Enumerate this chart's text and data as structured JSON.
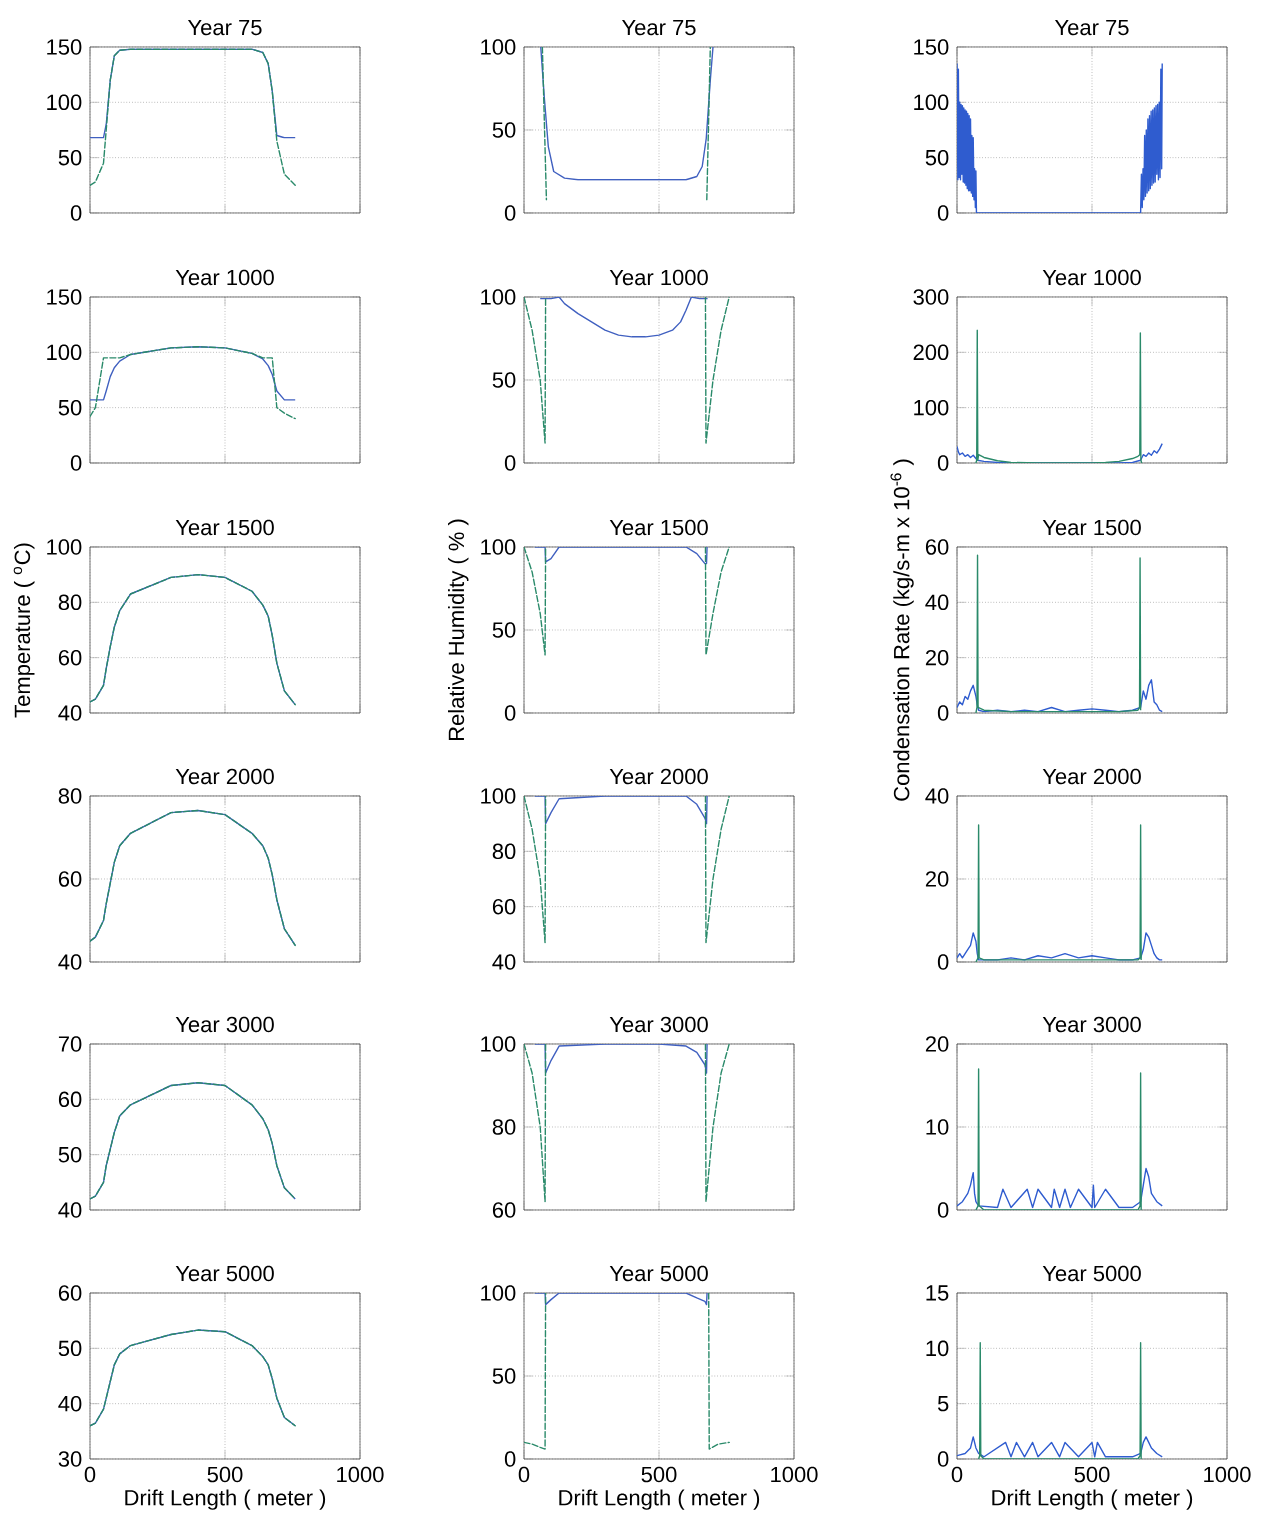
{
  "chart_data": [
    {
      "type": "line",
      "title": "Year 75",
      "xlim": [
        0,
        1000
      ],
      "xticks": [
        0,
        500,
        1000
      ],
      "ylim": [
        0,
        150
      ],
      "yticks": [
        0,
        50,
        100,
        150
      ],
      "grid": true,
      "tick_labels": "y",
      "series": [
        {
          "color": "#4060c0",
          "line_style": "solid",
          "x": [
            0,
            20,
            50,
            60,
            75,
            90,
            110,
            150,
            300,
            400,
            500,
            600,
            640,
            660,
            675,
            692,
            720,
            760
          ],
          "values": [
            68,
            68,
            68,
            80,
            120,
            142,
            147,
            148,
            148,
            148,
            148,
            148,
            145,
            135,
            110,
            70,
            68,
            68
          ]
        },
        {
          "color": "#2a8a6a",
          "line_style": "dashed",
          "x": [
            0,
            20,
            50,
            60,
            75,
            90,
            110,
            150,
            300,
            400,
            500,
            600,
            640,
            660,
            675,
            692,
            720,
            760
          ],
          "values": [
            25,
            28,
            45,
            75,
            120,
            142,
            147,
            148,
            148,
            148,
            148,
            148,
            145,
            135,
            110,
            65,
            35,
            25
          ]
        }
      ]
    },
    {
      "type": "line",
      "title": "Year 75",
      "xlim": [
        0,
        1000
      ],
      "xticks": [
        0,
        500,
        1000
      ],
      "ylim": [
        0,
        100
      ],
      "yticks": [
        0,
        50,
        100
      ],
      "grid": true,
      "tick_labels": "y",
      "series": [
        {
          "color": "#4060c0",
          "line_style": "solid",
          "x": [
            62,
            75,
            90,
            110,
            150,
            200,
            300,
            400,
            500,
            600,
            640,
            660,
            675,
            690,
            700
          ],
          "values": [
            100,
            70,
            40,
            25,
            21,
            20,
            20,
            20,
            20,
            20,
            22,
            28,
            45,
            80,
            100
          ]
        },
        {
          "color": "#2a8a6a",
          "line_style": "dashed",
          "x": [
            68,
            83,
            500,
            677,
            690
          ],
          "values": [
            100,
            8,
            null,
            8,
            100
          ]
        }
      ]
    },
    {
      "type": "line",
      "title": "Year 75",
      "xlim": [
        0,
        1000
      ],
      "xticks": [
        0,
        500,
        1000
      ],
      "ylim": [
        0,
        150
      ],
      "yticks": [
        0,
        50,
        100,
        150
      ],
      "grid": true,
      "tick_labels": "y",
      "series": [
        {
          "color": "#2f5ccf",
          "line_style": "solid",
          "x": [
            0,
            3,
            5,
            8,
            10,
            13,
            15,
            18,
            20,
            23,
            25,
            28,
            30,
            33,
            35,
            38,
            40,
            43,
            45,
            48,
            50,
            53,
            55,
            58,
            60,
            63,
            65,
            68,
            70,
            72,
            75,
            680,
            683,
            686,
            689,
            692,
            695,
            698,
            701,
            704,
            707,
            710,
            713,
            716,
            719,
            722,
            725,
            728,
            731,
            734,
            737,
            740,
            743,
            746,
            749,
            752,
            755,
            758,
            760
          ],
          "values": [
            135,
            30,
            130,
            32,
            100,
            30,
            98,
            35,
            97,
            28,
            95,
            27,
            93,
            25,
            92,
            22,
            90,
            20,
            88,
            20,
            85,
            18,
            70,
            15,
            68,
            12,
            40,
            5,
            38,
            0,
            0,
            0,
            35,
            5,
            40,
            12,
            70,
            15,
            75,
            18,
            85,
            20,
            88,
            22,
            92,
            25,
            93,
            27,
            95,
            28,
            97,
            35,
            98,
            30,
            100,
            32,
            130,
            40,
            135
          ]
        }
      ]
    },
    {
      "type": "line",
      "title": "Year 1000",
      "xlim": [
        0,
        1000
      ],
      "xticks": [
        0,
        500,
        1000
      ],
      "ylim": [
        0,
        150
      ],
      "yticks": [
        0,
        50,
        100,
        150
      ],
      "grid": true,
      "tick_labels": "y",
      "series": [
        {
          "color": "#4060c0",
          "line_style": "solid",
          "x": [
            0,
            20,
            50,
            60,
            75,
            90,
            110,
            150,
            300,
            400,
            500,
            600,
            640,
            660,
            675,
            692,
            720,
            760
          ],
          "values": [
            57,
            57,
            57,
            65,
            78,
            86,
            92,
            98,
            104,
            105,
            104,
            99,
            94,
            88,
            80,
            65,
            57,
            57
          ]
        },
        {
          "color": "#2a8a6a",
          "line_style": "dashed",
          "x": [
            0,
            20,
            50,
            60,
            75,
            90,
            110,
            150,
            300,
            400,
            500,
            600,
            640,
            660,
            675,
            692,
            720,
            760
          ],
          "values": [
            42,
            50,
            95,
            95,
            95,
            95,
            95,
            98,
            104,
            105,
            104,
            99,
            95,
            95,
            95,
            50,
            45,
            40
          ]
        }
      ]
    },
    {
      "type": "line",
      "title": "Year 1000",
      "xlim": [
        0,
        1000
      ],
      "xticks": [
        0,
        500,
        1000
      ],
      "ylim": [
        0,
        100
      ],
      "yticks": [
        0,
        50,
        100
      ],
      "grid": true,
      "tick_labels": "y",
      "series": [
        {
          "color": "#4060c0",
          "line_style": "solid",
          "x": [
            60,
            100,
            130,
            150,
            200,
            250,
            300,
            350,
            400,
            450,
            500,
            550,
            580,
            600,
            620,
            650,
            680
          ],
          "values": [
            99,
            99,
            100,
            96,
            90,
            85,
            80,
            77,
            76,
            76,
            77,
            80,
            85,
            92,
            100,
            99,
            99
          ]
        },
        {
          "color": "#2a8a6a",
          "line_style": "dashed",
          "x": [
            0,
            30,
            60,
            78,
            80,
            500,
            672,
            674,
            700,
            730,
            760
          ],
          "values": [
            100,
            80,
            50,
            12,
            100,
            null,
            100,
            12,
            50,
            80,
            100
          ]
        }
      ]
    },
    {
      "type": "line",
      "title": "Year 1000",
      "xlim": [
        0,
        1000
      ],
      "xticks": [
        0,
        500,
        1000
      ],
      "ylim": [
        0,
        300
      ],
      "yticks": [
        0,
        100,
        200,
        300
      ],
      "grid": true,
      "tick_labels": "y",
      "series": [
        {
          "color": "#2f5ccf",
          "line_style": "solid",
          "x": [
            0,
            5,
            10,
            20,
            30,
            40,
            50,
            60,
            70,
            75,
            100,
            150,
            200,
            300,
            400,
            500,
            600,
            650,
            680,
            690,
            700,
            710,
            720,
            730,
            740,
            750,
            755,
            760
          ],
          "values": [
            30,
            20,
            15,
            18,
            12,
            15,
            10,
            14,
            8,
            5,
            3,
            1,
            0,
            0,
            0,
            0,
            0,
            1,
            5,
            15,
            12,
            18,
            14,
            22,
            18,
            25,
            30,
            35
          ]
        },
        {
          "color": "#2a8a6a",
          "line_style": "solid",
          "x": [
            70,
            73,
            75,
            77,
            80,
            100,
            150,
            200,
            300,
            400,
            500,
            550,
            600,
            650,
            670,
            677,
            679,
            681,
            684
          ],
          "values": [
            0,
            5,
            240,
            5,
            15,
            10,
            4,
            1,
            0,
            0,
            0,
            1,
            3,
            8,
            12,
            15,
            235,
            5,
            0
          ]
        }
      ]
    },
    {
      "type": "line",
      "title": "Year 1500",
      "xlim": [
        0,
        1000
      ],
      "xticks": [
        0,
        500,
        1000
      ],
      "ylim": [
        40,
        100
      ],
      "yticks": [
        40,
        60,
        80,
        100
      ],
      "grid": true,
      "tick_labels": "y",
      "ylabel": "Temperature ( $^{o}$C)",
      "series": [
        {
          "color": "#4060c0",
          "line_style": "solid",
          "x": [
            0,
            20,
            50,
            60,
            75,
            90,
            110,
            150,
            300,
            400,
            500,
            600,
            640,
            660,
            675,
            692,
            720,
            760
          ],
          "values": [
            44,
            45,
            50,
            56,
            64,
            71,
            77,
            83,
            89,
            90,
            89,
            84,
            79,
            75,
            68,
            58,
            48,
            43
          ]
        },
        {
          "color": "#2a8a6a",
          "line_style": "dashed",
          "x": [
            0,
            20,
            50,
            60,
            75,
            90,
            110,
            150,
            300,
            400,
            500,
            600,
            640,
            660,
            675,
            692,
            720,
            760
          ],
          "values": [
            44,
            45,
            50,
            56,
            64,
            71,
            77,
            83,
            89,
            90,
            89,
            84,
            79,
            75,
            68,
            58,
            48,
            43
          ]
        }
      ]
    },
    {
      "type": "line",
      "title": "Year 1500",
      "xlim": [
        0,
        1000
      ],
      "xticks": [
        0,
        500,
        1000
      ],
      "ylim": [
        0,
        100
      ],
      "yticks": [
        0,
        50,
        100
      ],
      "grid": true,
      "tick_labels": "y",
      "ylabel": "Relative Humidity ( % )",
      "series": [
        {
          "color": "#4060c0",
          "line_style": "solid",
          "x": [
            40,
            78,
            80,
            100,
            130,
            300,
            500,
            600,
            640,
            670,
            676,
            678
          ],
          "values": [
            100,
            100,
            91,
            93,
            100,
            100,
            100,
            100,
            96,
            90,
            90,
            100
          ]
        },
        {
          "color": "#2a8a6a",
          "line_style": "dashed",
          "x": [
            0,
            30,
            60,
            78,
            80,
            500,
            672,
            674,
            700,
            730,
            760
          ],
          "values": [
            100,
            85,
            60,
            35,
            100,
            null,
            100,
            35,
            60,
            85,
            100
          ]
        }
      ]
    },
    {
      "type": "line",
      "title": "Year 1500",
      "xlim": [
        0,
        1000
      ],
      "xticks": [
        0,
        500,
        1000
      ],
      "ylim": [
        0,
        60
      ],
      "yticks": [
        0,
        20,
        40,
        60
      ],
      "grid": true,
      "tick_labels": "y",
      "ylabel": "Condensation Rate (kg/s-m x 10$^{-6}$ )",
      "series": [
        {
          "color": "#2f5ccf",
          "line_style": "solid",
          "x": [
            0,
            10,
            20,
            30,
            40,
            50,
            60,
            70,
            75,
            80,
            100,
            150,
            200,
            250,
            300,
            350,
            400,
            450,
            500,
            550,
            600,
            650,
            680,
            690,
            700,
            710,
            720,
            730,
            740,
            750,
            760
          ],
          "values": [
            2,
            4,
            3,
            6,
            5,
            8,
            10,
            6,
            3,
            1,
            0.5,
            1,
            0.5,
            1,
            0.5,
            2,
            0.5,
            1,
            1.5,
            1,
            0.5,
            1,
            2,
            8,
            5,
            10,
            12,
            4,
            3,
            1,
            0.5
          ]
        },
        {
          "color": "#2a8a6a",
          "line_style": "solid",
          "x": [
            70,
            74,
            76,
            78,
            100,
            200,
            300,
            400,
            500,
            600,
            670,
            676,
            678,
            680
          ],
          "values": [
            0,
            2,
            57,
            2,
            1,
            0.5,
            0.5,
            0.5,
            0.5,
            0.5,
            1,
            2,
            56,
            1
          ]
        }
      ]
    },
    {
      "type": "line",
      "title": "Year 2000",
      "xlim": [
        0,
        1000
      ],
      "xticks": [
        0,
        500,
        1000
      ],
      "ylim": [
        40,
        80
      ],
      "yticks": [
        40,
        60,
        80
      ],
      "grid": true,
      "tick_labels": "y",
      "series": [
        {
          "color": "#4060c0",
          "line_style": "solid",
          "x": [
            0,
            20,
            50,
            60,
            75,
            90,
            110,
            150,
            300,
            400,
            500,
            600,
            640,
            660,
            675,
            692,
            720,
            760
          ],
          "values": [
            45,
            46,
            50,
            54,
            59,
            64,
            68,
            71,
            76,
            76.5,
            75.5,
            71,
            68,
            65,
            61,
            55,
            48,
            44
          ]
        },
        {
          "color": "#2a8a6a",
          "line_style": "dashed",
          "x": [
            0,
            20,
            50,
            60,
            75,
            90,
            110,
            150,
            300,
            400,
            500,
            600,
            640,
            660,
            675,
            692,
            720,
            760
          ],
          "values": [
            45,
            46,
            50,
            54,
            59,
            64,
            68,
            71,
            76,
            76.5,
            75.5,
            71,
            68,
            65,
            61,
            55,
            48,
            44
          ]
        }
      ]
    },
    {
      "type": "line",
      "title": "Year 2000",
      "xlim": [
        0,
        1000
      ],
      "xticks": [
        0,
        500,
        1000
      ],
      "ylim": [
        40,
        100
      ],
      "yticks": [
        40,
        60,
        80,
        100
      ],
      "grid": true,
      "tick_labels": "y",
      "series": [
        {
          "color": "#4060c0",
          "line_style": "solid",
          "x": [
            40,
            78,
            80,
            100,
            130,
            300,
            500,
            600,
            640,
            670,
            676,
            678
          ],
          "values": [
            100,
            100,
            90,
            94,
            99,
            100,
            100,
            100,
            97,
            92,
            90,
            100
          ]
        },
        {
          "color": "#2a8a6a",
          "line_style": "dashed",
          "x": [
            0,
            30,
            60,
            78,
            80,
            500,
            672,
            674,
            700,
            730,
            760
          ],
          "values": [
            100,
            88,
            70,
            47,
            100,
            null,
            100,
            47,
            70,
            88,
            100
          ]
        }
      ]
    },
    {
      "type": "line",
      "title": "Year 2000",
      "xlim": [
        0,
        1000
      ],
      "xticks": [
        0,
        500,
        1000
      ],
      "ylim": [
        0,
        40
      ],
      "yticks": [
        0,
        20,
        40
      ],
      "grid": true,
      "tick_labels": "y",
      "series": [
        {
          "color": "#2f5ccf",
          "line_style": "solid",
          "x": [
            0,
            10,
            20,
            30,
            40,
            50,
            60,
            70,
            75,
            80,
            150,
            200,
            250,
            300,
            350,
            400,
            450,
            500,
            550,
            600,
            650,
            680,
            690,
            700,
            710,
            720,
            730,
            740,
            750,
            760
          ],
          "values": [
            1,
            2,
            1,
            2,
            3,
            4,
            7,
            5,
            2,
            0.5,
            0.5,
            1,
            0.5,
            1.5,
            1,
            2,
            1,
            1.5,
            1,
            0.5,
            0.5,
            1,
            3,
            7,
            6,
            4,
            2,
            1,
            0.5,
            0.5
          ]
        },
        {
          "color": "#2a8a6a",
          "line_style": "solid",
          "x": [
            70,
            78,
            80,
            82,
            100,
            300,
            500,
            670,
            678,
            680,
            682
          ],
          "values": [
            0,
            1,
            33,
            1,
            0.5,
            0.5,
            0.5,
            0.5,
            1,
            33,
            0.5
          ]
        }
      ]
    },
    {
      "type": "line",
      "title": "Year 3000",
      "xlim": [
        0,
        1000
      ],
      "xticks": [
        0,
        500,
        1000
      ],
      "ylim": [
        40,
        70
      ],
      "yticks": [
        40,
        50,
        60,
        70
      ],
      "grid": true,
      "tick_labels": "y",
      "series": [
        {
          "color": "#4060c0",
          "line_style": "solid",
          "x": [
            0,
            20,
            50,
            60,
            75,
            90,
            110,
            150,
            300,
            400,
            500,
            600,
            640,
            660,
            675,
            692,
            720,
            760
          ],
          "values": [
            42,
            42.5,
            45,
            48,
            51,
            54,
            57,
            59,
            62.5,
            63,
            62.5,
            59,
            56.5,
            54.5,
            52,
            48,
            44,
            42
          ]
        },
        {
          "color": "#2a8a6a",
          "line_style": "dashed",
          "x": [
            0,
            20,
            50,
            60,
            75,
            90,
            110,
            150,
            300,
            400,
            500,
            600,
            640,
            660,
            675,
            692,
            720,
            760
          ],
          "values": [
            42,
            42.5,
            45,
            48,
            51,
            54,
            57,
            59,
            62.5,
            63,
            62.5,
            59,
            56.5,
            54.5,
            52,
            48,
            44,
            42
          ]
        }
      ]
    },
    {
      "type": "line",
      "title": "Year 3000",
      "xlim": [
        0,
        1000
      ],
      "xticks": [
        0,
        500,
        1000
      ],
      "ylim": [
        60,
        100
      ],
      "yticks": [
        60,
        80,
        100
      ],
      "grid": true,
      "tick_labels": "y",
      "series": [
        {
          "color": "#4060c0",
          "line_style": "solid",
          "x": [
            40,
            78,
            80,
            100,
            130,
            300,
            500,
            600,
            640,
            670,
            676,
            678
          ],
          "values": [
            100,
            100,
            93,
            96,
            99.5,
            100,
            100,
            99.5,
            98,
            95,
            93,
            100
          ]
        },
        {
          "color": "#2a8a6a",
          "line_style": "dashed",
          "x": [
            0,
            30,
            60,
            78,
            80,
            500,
            672,
            674,
            700,
            730,
            760
          ],
          "values": [
            100,
            93,
            80,
            62,
            100,
            null,
            100,
            62,
            80,
            93,
            100
          ]
        }
      ]
    },
    {
      "type": "line",
      "title": "Year 3000",
      "xlim": [
        0,
        1000
      ],
      "xticks": [
        0,
        500,
        1000
      ],
      "ylim": [
        0,
        20
      ],
      "yticks": [
        0,
        10,
        20
      ],
      "grid": true,
      "tick_labels": "y",
      "series": [
        {
          "color": "#2f5ccf",
          "line_style": "solid",
          "x": [
            0,
            20,
            40,
            50,
            60,
            65,
            70,
            80,
            150,
            170,
            200,
            260,
            280,
            300,
            350,
            360,
            380,
            400,
            420,
            450,
            500,
            505,
            510,
            550,
            600,
            650,
            680,
            690,
            700,
            710,
            720,
            740,
            760
          ],
          "values": [
            0.5,
            1,
            2,
            3,
            4.5,
            2,
            1,
            0.5,
            0.3,
            2.5,
            0.3,
            2.5,
            0.3,
            2.5,
            0.3,
            2.5,
            0.3,
            2.5,
            0.3,
            2.5,
            0.3,
            3,
            0.3,
            2.5,
            0.3,
            0.3,
            1,
            3,
            5,
            4,
            2,
            1,
            0.5
          ]
        },
        {
          "color": "#2a8a6a",
          "line_style": "solid",
          "x": [
            70,
            78,
            80,
            82,
            100,
            300,
            500,
            670,
            678,
            680,
            682
          ],
          "values": [
            0,
            0.5,
            17,
            0.5,
            0,
            0,
            0,
            0,
            0.5,
            16.5,
            0
          ]
        }
      ]
    },
    {
      "type": "line",
      "title": "Year 5000",
      "xlim": [
        0,
        1000
      ],
      "xticks": [
        0,
        500,
        1000
      ],
      "ylim": [
        30,
        60
      ],
      "yticks": [
        30,
        40,
        50,
        60
      ],
      "grid": true,
      "xlabel": "Drift Length ( meter )",
      "series": [
        {
          "color": "#4060c0",
          "line_style": "solid",
          "x": [
            0,
            20,
            50,
            60,
            75,
            90,
            110,
            150,
            300,
            400,
            500,
            600,
            640,
            660,
            675,
            692,
            720,
            760
          ],
          "values": [
            36,
            36.5,
            39,
            41,
            44,
            47,
            49,
            50.5,
            52.5,
            53.3,
            53,
            50.5,
            48.5,
            47,
            44.5,
            41,
            37.5,
            36
          ]
        },
        {
          "color": "#2a8a6a",
          "line_style": "dashed",
          "x": [
            0,
            20,
            50,
            60,
            75,
            90,
            110,
            150,
            300,
            400,
            500,
            600,
            640,
            660,
            675,
            692,
            720,
            760
          ],
          "values": [
            36,
            36.5,
            39,
            41,
            44,
            47,
            49,
            50.5,
            52.5,
            53.3,
            53,
            50.5,
            48.5,
            47,
            44.5,
            41,
            37.5,
            36
          ]
        }
      ]
    },
    {
      "type": "line",
      "title": "Year 5000",
      "xlim": [
        0,
        1000
      ],
      "xticks": [
        0,
        500,
        1000
      ],
      "ylim": [
        0,
        100
      ],
      "yticks": [
        0,
        50,
        100
      ],
      "grid": true,
      "xlabel": "Drift Length ( meter )",
      "series": [
        {
          "color": "#4060c0",
          "line_style": "solid",
          "x": [
            40,
            78,
            80,
            100,
            130,
            300,
            500,
            600,
            640,
            670,
            676,
            678
          ],
          "values": [
            100,
            100,
            93,
            96,
            100,
            100,
            100,
            100,
            97,
            95,
            93,
            100
          ]
        },
        {
          "color": "#2a8a6a",
          "line_style": "dashed",
          "x": [
            0,
            30,
            60,
            78,
            80,
            500,
            684,
            686,
            720,
            760
          ],
          "values": [
            10,
            9,
            7,
            6,
            100,
            null,
            100,
            6,
            9,
            10
          ]
        }
      ]
    },
    {
      "type": "line",
      "title": "Year 5000",
      "xlim": [
        0,
        1000
      ],
      "xticks": [
        0,
        500,
        1000
      ],
      "ylim": [
        0,
        15
      ],
      "yticks": [
        0,
        5,
        10,
        15
      ],
      "grid": true,
      "xlabel": "Drift Length ( meter )",
      "series": [
        {
          "color": "#2f5ccf",
          "line_style": "solid",
          "x": [
            0,
            30,
            50,
            60,
            70,
            80,
            100,
            180,
            200,
            220,
            250,
            280,
            300,
            350,
            380,
            400,
            450,
            500,
            510,
            520,
            550,
            600,
            650,
            680,
            690,
            700,
            710,
            720,
            740,
            760
          ],
          "values": [
            0.3,
            0.5,
            1,
            2,
            1,
            0.5,
            0.2,
            1.5,
            0.2,
            1.5,
            0.2,
            1.5,
            0.2,
            1.5,
            0.2,
            1.5,
            0.2,
            1.5,
            0.2,
            1.5,
            0.2,
            0.2,
            0.2,
            0.5,
            1.5,
            2,
            1.5,
            1,
            0.5,
            0.2
          ]
        },
        {
          "color": "#2a8a6a",
          "line_style": "solid",
          "x": [
            80,
            84,
            86,
            88,
            100,
            400,
            670,
            678,
            680,
            682
          ],
          "values": [
            0,
            0.3,
            10.5,
            0.3,
            0,
            0,
            0,
            0.3,
            10.5,
            0
          ]
        }
      ]
    }
  ]
}
